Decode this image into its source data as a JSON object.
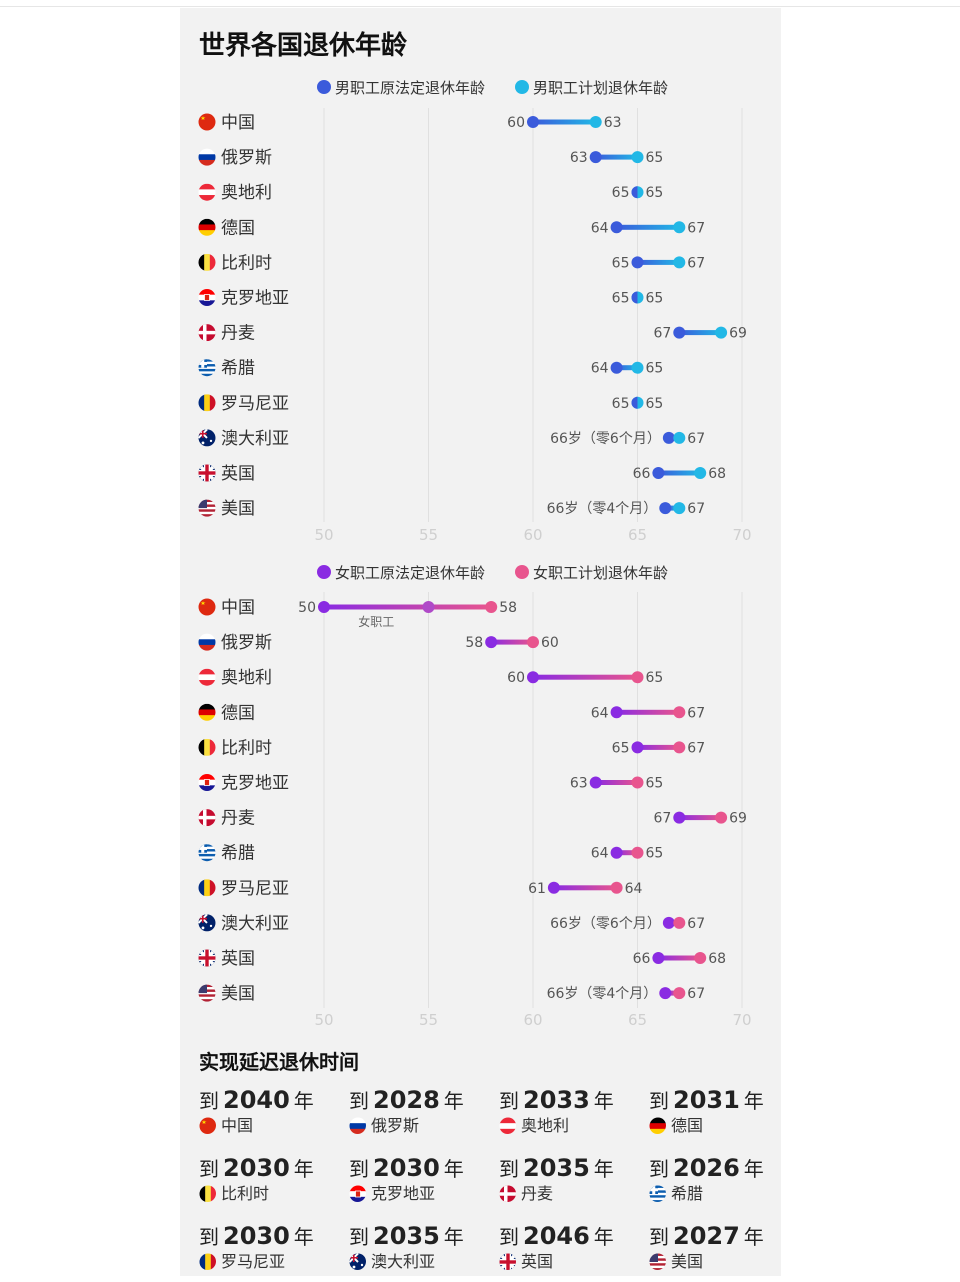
{
  "colors": {
    "male_current": "#3b5bdb",
    "male_planned": "#22b8e6",
    "female_current": "#8a2be2",
    "female_planned": "#e8558e"
  },
  "chart_data": [
    {
      "type": "dumbbell",
      "title": "世界各国退休年龄",
      "legend": [
        "男职工原法定退休年龄",
        "男职工计划退休年龄"
      ],
      "xlim": [
        50,
        70
      ],
      "xticks": [
        50,
        55,
        60,
        65,
        70
      ],
      "grid": true,
      "countries": [
        "中国",
        "俄罗斯",
        "奥地利",
        "德国",
        "比利时",
        "克罗地亚",
        "丹麦",
        "希腊",
        "罗马尼亚",
        "澳大利亚",
        "英国",
        "美国"
      ],
      "series": [
        {
          "name": "男职工原法定退休年龄",
          "values": [
            60,
            63,
            65,
            64,
            65,
            65,
            67,
            64,
            65,
            66.5,
            66,
            66.33
          ],
          "labels": [
            "60",
            "63",
            "65",
            "64",
            "65",
            "65",
            "67",
            "64",
            "65",
            "66岁（零6个月）",
            "66",
            "66岁（零4个月）"
          ]
        },
        {
          "name": "男职工计划退休年龄",
          "values": [
            63,
            65,
            65,
            67,
            67,
            65,
            69,
            65,
            65,
            67,
            68,
            67
          ],
          "labels": [
            "63",
            "65",
            "65",
            "67",
            "67",
            "65",
            "69",
            "65",
            "65",
            "67",
            "68",
            "67"
          ]
        }
      ]
    },
    {
      "type": "dumbbell",
      "legend": [
        "女职工原法定退休年龄",
        "女职工计划退休年龄"
      ],
      "xlim": [
        50,
        70
      ],
      "xticks": [
        50,
        55,
        60,
        65,
        70
      ],
      "grid": true,
      "countries": [
        "中国",
        "俄罗斯",
        "奥地利",
        "德国",
        "比利时",
        "克罗地亚",
        "丹麦",
        "希腊",
        "罗马尼亚",
        "澳大利亚",
        "英国",
        "美国"
      ],
      "series": [
        {
          "name": "女职工原法定退休年龄",
          "values": [
            50,
            58,
            60,
            64,
            65,
            63,
            67,
            64,
            61,
            66.5,
            66,
            66.33
          ],
          "labels": [
            "50",
            "58",
            "60",
            "64",
            "65",
            "63",
            "67",
            "64",
            "61",
            "66岁（零6个月）",
            "66",
            "66岁（零4个月）"
          ]
        },
        {
          "name": "女职工计划退休年龄",
          "values": [
            58,
            60,
            65,
            67,
            67,
            65,
            69,
            65,
            64,
            67,
            68,
            67
          ],
          "labels": [
            "58",
            "60",
            "65",
            "67",
            "67",
            "65",
            "69",
            "65",
            "64",
            "67",
            "68",
            "67"
          ]
        }
      ],
      "annotation": {
        "text": "女职工",
        "extra_point": 55
      }
    }
  ],
  "timeline": {
    "title": "实现延迟退休时间",
    "prefix": "到",
    "suffix": "年",
    "items": [
      {
        "year": "2040",
        "country": "中国"
      },
      {
        "year": "2028",
        "country": "俄罗斯"
      },
      {
        "year": "2033",
        "country": "奥地利"
      },
      {
        "year": "2031",
        "country": "德国"
      },
      {
        "year": "2030",
        "country": "比利时"
      },
      {
        "year": "2030",
        "country": "克罗地亚"
      },
      {
        "year": "2035",
        "country": "丹麦"
      },
      {
        "year": "2026",
        "country": "希腊"
      },
      {
        "year": "2030",
        "country": "罗马尼亚"
      },
      {
        "year": "2035",
        "country": "澳大利亚"
      },
      {
        "year": "2046",
        "country": "英国"
      },
      {
        "year": "2027",
        "country": "美国"
      }
    ]
  }
}
